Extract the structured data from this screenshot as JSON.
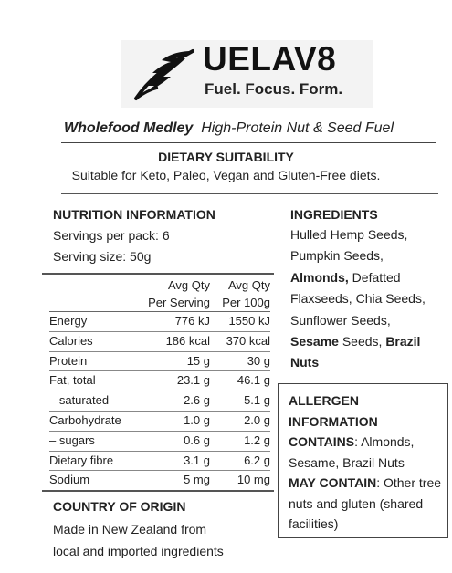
{
  "brand": {
    "name": "UELAV8",
    "tagline": "Fuel. Focus. Form.",
    "logo_icon": "fern-icon"
  },
  "product": {
    "name": "Wholefood Medley",
    "descriptor": "High-Protein Nut & Seed Fuel"
  },
  "dietary": {
    "heading": "DIETARY SUITABILITY",
    "text": "Suitable for Keto, Paleo, Vegan and Gluten-Free diets."
  },
  "nutrition": {
    "heading": "NUTRITION INFORMATION",
    "servings_per_pack": "Servings per pack: 6",
    "serving_size": "Serving size: 50g",
    "columns": {
      "col1_line1": "Avg Qty",
      "col1_line2": "Per Serving",
      "col2_line1": "Avg Qty",
      "col2_line2": "Per 100g"
    },
    "rows": [
      {
        "name": "Energy",
        "per_serving": "776 kJ",
        "per_100g": "1550 kJ"
      },
      {
        "name": "Calories",
        "per_serving": "186 kcal",
        "per_100g": "370 kcal"
      },
      {
        "name": "Protein",
        "per_serving": "15 g",
        "per_100g": "30 g"
      },
      {
        "name": "Fat, total",
        "per_serving": "23.1 g",
        "per_100g": "46.1 g"
      },
      {
        "name": "– saturated",
        "per_serving": "2.6 g",
        "per_100g": "5.1 g"
      },
      {
        "name": "Carbohydrate",
        "per_serving": "1.0 g",
        "per_100g": "2.0 g"
      },
      {
        "name": "– sugars",
        "per_serving": "0.6 g",
        "per_100g": "1.2 g"
      },
      {
        "name": "Dietary fibre",
        "per_serving": "3.1 g",
        "per_100g": "6.2 g"
      },
      {
        "name": "Sodium",
        "per_serving": "5 mg",
        "per_100g": "10 mg"
      }
    ]
  },
  "country": {
    "heading": "COUNTRY OF ORIGIN",
    "line1": "Made in New Zealand from",
    "line2": "local and imported ingredients"
  },
  "ingredients": {
    "heading": "INGREDIENTS",
    "t1": "Hulled Hemp Seeds, Pumpkin Seeds, ",
    "b1": "Almonds,",
    "t2": " Defatted Flaxseeds, Chia Seeds, Sunflower Seeds, ",
    "b2": "Sesame",
    "t3": " Seeds, ",
    "b3": "Brazil Nuts"
  },
  "allergen": {
    "heading": "ALLERGEN INFORMATION",
    "contains_label": "CONTAINS",
    "contains_text": ": Almonds, Sesame, Brazil Nuts",
    "may_contain_label": "MAY CONTAIN",
    "may_contain_text": ": Other tree nuts and gluten (shared facilities)"
  }
}
